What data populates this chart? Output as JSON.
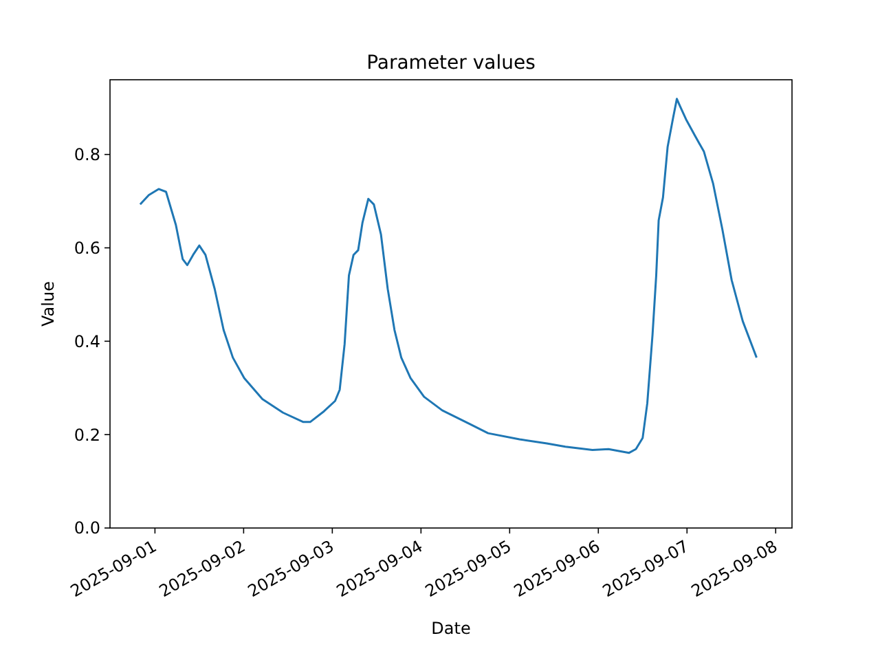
{
  "chart_data": {
    "type": "line",
    "title": "Parameter values",
    "xlabel": "Date",
    "ylabel": "Value",
    "x": [
      "2025-08-31T20:00",
      "2025-08-31T22:20",
      "2025-09-01T01:00",
      "2025-09-01T03:00",
      "2025-09-01T05:40",
      "2025-09-01T07:30",
      "2025-09-01T08:45",
      "2025-09-01T10:20",
      "2025-09-01T12:00",
      "2025-09-01T13:40",
      "2025-09-01T16:10",
      "2025-09-01T18:35",
      "2025-09-01T21:05",
      "2025-09-02T00:10",
      "2025-09-02T05:05",
      "2025-09-02T10:40",
      "2025-09-02T16:10",
      "2025-09-02T18:00",
      "2025-09-02T21:45",
      "2025-09-03T00:45",
      "2025-09-03T02:00",
      "2025-09-03T03:20",
      "2025-09-03T04:30",
      "2025-09-03T05:45",
      "2025-09-03T07:00",
      "2025-09-03T08:10",
      "2025-09-03T09:45",
      "2025-09-03T11:15",
      "2025-09-03T13:10",
      "2025-09-03T15:00",
      "2025-09-03T16:50",
      "2025-09-03T18:40",
      "2025-09-03T21:10",
      "2025-09-04T00:50",
      "2025-09-04T05:45",
      "2025-09-04T13:10",
      "2025-09-04T18:10",
      "2025-09-05T02:40",
      "2025-09-05T10:05",
      "2025-09-05T15:05",
      "2025-09-05T22:25",
      "2025-09-06T02:45",
      "2025-09-06T08:20",
      "2025-09-06T10:10",
      "2025-09-06T12:00",
      "2025-09-06T13:15",
      "2025-09-06T14:40",
      "2025-09-06T15:40",
      "2025-09-06T16:20",
      "2025-09-06T17:30",
      "2025-09-06T18:45",
      "2025-09-06T20:15",
      "2025-09-06T21:15",
      "2025-09-06T22:05",
      "2025-09-06T23:45",
      "2025-09-07T02:10",
      "2025-09-07T04:35",
      "2025-09-07T07:05",
      "2025-09-07T09:35",
      "2025-09-07T12:05",
      "2025-09-07T15:05",
      "2025-09-07T18:50"
    ],
    "series": [
      {
        "color": "#1f77b4",
        "values": [
          0.693,
          0.713,
          0.726,
          0.72,
          0.649,
          0.576,
          0.563,
          0.585,
          0.605,
          0.585,
          0.512,
          0.424,
          0.365,
          0.321,
          0.276,
          0.247,
          0.227,
          0.227,
          0.25,
          0.272,
          0.296,
          0.394,
          0.541,
          0.585,
          0.595,
          0.654,
          0.705,
          0.693,
          0.629,
          0.512,
          0.424,
          0.365,
          0.321,
          0.281,
          0.252,
          0.223,
          0.203,
          0.19,
          0.181,
          0.174,
          0.167,
          0.169,
          0.161,
          0.169,
          0.193,
          0.267,
          0.414,
          0.541,
          0.659,
          0.708,
          0.816,
          0.879,
          0.919,
          0.904,
          0.875,
          0.84,
          0.806,
          0.737,
          0.639,
          0.531,
          0.443,
          0.365
        ]
      }
    ],
    "xlim": [
      "2025-08-31T11:50",
      "2025-09-08T04:25"
    ],
    "xticks": [
      "2025-09-01",
      "2025-09-02",
      "2025-09-03",
      "2025-09-04",
      "2025-09-05",
      "2025-09-06",
      "2025-09-07",
      "2025-09-08"
    ],
    "ylim": [
      0,
      0.96
    ],
    "yticks": [
      {
        "value": 0,
        "label": "0.0"
      },
      {
        "value": 0.2,
        "label": "0.2"
      },
      {
        "value": 0.4,
        "label": "0.4"
      },
      {
        "value": 0.6,
        "label": "0.6"
      },
      {
        "value": 0.8,
        "label": "0.8"
      }
    ],
    "line_style": "solid"
  }
}
